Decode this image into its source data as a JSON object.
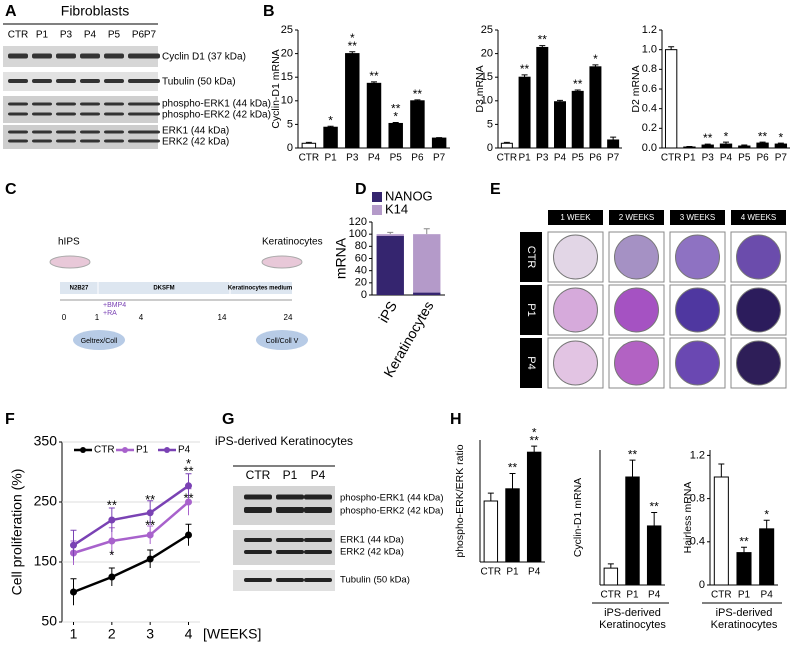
{
  "panel_labels": [
    "A",
    "B",
    "C",
    "D",
    "E",
    "F",
    "G",
    "H"
  ],
  "panel_a": {
    "title": "Fibroblasts",
    "lanes": [
      "CTR",
      "P1",
      "P3",
      "P4",
      "P5",
      "P6",
      "P7"
    ],
    "bands": [
      "Cyclin D1 (37 kDa)",
      "Tubulin (50 kDa)",
      "phospho-ERK1 (44 kDa)",
      "phospho-ERK2 (42 kDa)",
      "ERK1 (44 kDa)",
      "ERK2 (42 kDa)"
    ]
  },
  "panel_c": {
    "start": "hIPS",
    "end": "Keratinocytes",
    "media": [
      "N2B27",
      "DKSFM",
      "Keratinocytes medium"
    ],
    "factors": [
      "+BMP4",
      "+RA"
    ],
    "days": [
      "0",
      "1",
      "4",
      "14",
      "24"
    ],
    "coatings": [
      "Geltrex/Coll",
      "Coll/Coll V"
    ]
  },
  "panel_e": {
    "columns": [
      "1 WEEK",
      "2 WEEKS",
      "3 WEEKS",
      "4 WEEKS"
    ],
    "rows": [
      "CTR",
      "P1",
      "P4"
    ]
  },
  "panel_g": {
    "title": "iPS-derived Keratinocytes",
    "lanes": [
      "CTR",
      "P1",
      "P4"
    ],
    "bands": [
      "phospho-ERK1 (44 kDa)",
      "phospho-ERK2 (42 kDa)",
      "ERK1 (44 kDa)",
      "ERK2 (42 kDa)",
      "Tubulin (50 kDa)"
    ]
  },
  "chart_data": [
    {
      "type": "bar",
      "ylabel": "Cyclin-D1 mRNA",
      "categories": [
        "CTR",
        "P1",
        "P3",
        "P4",
        "P5",
        "P6",
        "P7"
      ],
      "values": [
        1,
        4.4,
        20,
        13.7,
        5.2,
        10,
        2.1
      ],
      "errors": [
        0.2,
        0.2,
        0.4,
        0.3,
        0.2,
        0.2,
        0.1
      ],
      "colors": [
        "#ffffff",
        "#000000",
        "#000000",
        "#000000",
        "#000000",
        "#000000",
        "#000000"
      ],
      "significance": [
        null,
        [
          "*"
        ],
        [
          "*",
          "**"
        ],
        [
          "**"
        ],
        [
          "**",
          "*"
        ],
        [
          "**"
        ],
        null
      ],
      "ylim": [
        0,
        25
      ],
      "yticks": [
        0,
        5,
        10,
        15,
        20,
        25
      ]
    },
    {
      "type": "bar",
      "ylabel": "D3 mRNA",
      "categories": [
        "CTR",
        "P1",
        "P3",
        "P4",
        "P5",
        "P6",
        "P7"
      ],
      "values": [
        1,
        15,
        21.3,
        9.8,
        12,
        17.2,
        1.7
      ],
      "errors": [
        0.2,
        0.5,
        0.4,
        0.3,
        0.3,
        0.4,
        0.6
      ],
      "colors": [
        "#ffffff",
        "#000000",
        "#000000",
        "#000000",
        "#000000",
        "#000000",
        "#000000"
      ],
      "significance": [
        null,
        [
          "**"
        ],
        [
          "**"
        ],
        null,
        [
          "**"
        ],
        [
          "*"
        ],
        null
      ],
      "ylim": [
        0,
        25
      ],
      "yticks": [
        0,
        5,
        10,
        15,
        20,
        25
      ]
    },
    {
      "type": "bar",
      "ylabel": "D2 mRNA",
      "categories": [
        "CTR",
        "P1",
        "P3",
        "P4",
        "P5",
        "P6",
        "P7"
      ],
      "values": [
        1,
        0.01,
        0.03,
        0.04,
        0.02,
        0.05,
        0.04
      ],
      "errors": [
        0.03,
        0.005,
        0.01,
        0.02,
        0.01,
        0.01,
        0.01
      ],
      "colors": [
        "#ffffff",
        "#000000",
        "#000000",
        "#000000",
        "#000000",
        "#000000",
        "#000000"
      ],
      "significance": [
        null,
        null,
        [
          "**"
        ],
        [
          "*"
        ],
        null,
        [
          "**"
        ],
        [
          "*"
        ]
      ],
      "ylim": [
        0,
        1.2
      ],
      "yticks": [
        {
          "value": 0,
          "label": "0.0"
        },
        0.2,
        0.4,
        0.6,
        0.8,
        {
          "value": 1,
          "label": "1.0"
        },
        1.2
      ]
    },
    {
      "type": "stacked_bar",
      "ylabel": "mRNA",
      "categories": [
        "iPS",
        "Keratinocytes"
      ],
      "series": [
        {
          "name": "NANOG",
          "color": "#35256f",
          "values": [
            97,
            4
          ]
        },
        {
          "name": "K14",
          "color": "#b49ac9",
          "values": [
            3,
            96
          ],
          "errors": [
            3,
            9
          ]
        }
      ],
      "ylim": [
        0,
        120
      ],
      "yticks": [
        0,
        20,
        40,
        60,
        80,
        100,
        120
      ],
      "legend": "top-left"
    },
    {
      "type": "line",
      "ylabel": "Cell proliferation (%)",
      "xlabel": "[WEEKS]",
      "x": [
        1,
        2,
        3,
        4
      ],
      "xlim": [
        0.7,
        4.3
      ],
      "xticks": [
        1,
        2,
        3,
        4
      ],
      "series": [
        {
          "name": "CTR",
          "color": "#000000",
          "values": [
            100,
            125,
            155,
            195
          ],
          "errors": [
            22,
            15,
            15,
            18
          ]
        },
        {
          "name": "P1",
          "color": "#a862cc",
          "values": [
            165,
            185,
            195,
            250
          ],
          "errors": [
            20,
            22,
            15,
            22
          ]
        },
        {
          "name": "P4",
          "color": "#7a42b4",
          "values": [
            178,
            220,
            232,
            277
          ],
          "errors": [
            25,
            20,
            20,
            20
          ]
        }
      ],
      "annotations": [
        {
          "x": 2,
          "y": 243,
          "text": "**"
        },
        {
          "x": 2,
          "y": 160,
          "text": "*"
        },
        {
          "x": 3,
          "y": 252,
          "text": "**"
        },
        {
          "x": 3,
          "y": 210,
          "text": "**"
        },
        {
          "x": 4,
          "y": 312,
          "text": "*"
        },
        {
          "x": 4,
          "y": 300,
          "text": "**"
        },
        {
          "x": 4,
          "y": 255,
          "text": "**"
        }
      ],
      "ylim": [
        50,
        350
      ],
      "yticks": [
        50,
        150,
        250,
        350
      ],
      "grid": true,
      "legend": "top-left"
    },
    {
      "type": "bar",
      "ylabel": "phospho-ERK/ERK ratio",
      "categories": [
        "CTR",
        "P1",
        "P4"
      ],
      "values": [
        1,
        1.2,
        1.8
      ],
      "errors": [
        0.13,
        0.25,
        0.1
      ],
      "colors": [
        "#ffffff",
        "#000000",
        "#000000"
      ],
      "significance": [
        null,
        [
          "**"
        ],
        [
          "*",
          "**"
        ]
      ],
      "ylim": [
        0,
        2
      ]
    },
    {
      "type": "bar",
      "ylabel": "Cyclin-D1 mRNA",
      "categories": [
        "CTR",
        "P1",
        "P4"
      ],
      "group_label": "iPS-derived Keratinocytes",
      "values": [
        1,
        6.4,
        3.5
      ],
      "errors": [
        0.25,
        1,
        0.8
      ],
      "colors": [
        "#ffffff",
        "#000000",
        "#000000"
      ],
      "significance": [
        null,
        [
          "**"
        ],
        [
          "**"
        ]
      ],
      "ylim": [
        0,
        8
      ]
    },
    {
      "type": "bar",
      "ylabel": "Hairless mRNA",
      "categories": [
        "CTR",
        "P1",
        "P4"
      ],
      "group_label": "iPS-derived Keratinocytes",
      "values": [
        1,
        0.3,
        0.52
      ],
      "errors": [
        0.12,
        0.05,
        0.08
      ],
      "colors": [
        "#ffffff",
        "#000000",
        "#000000"
      ],
      "significance": [
        null,
        [
          "**"
        ],
        [
          "*"
        ]
      ],
      "ylim": [
        0,
        1.25
      ],
      "yticks": [
        0,
        0.4,
        0.8,
        1.2
      ]
    }
  ]
}
